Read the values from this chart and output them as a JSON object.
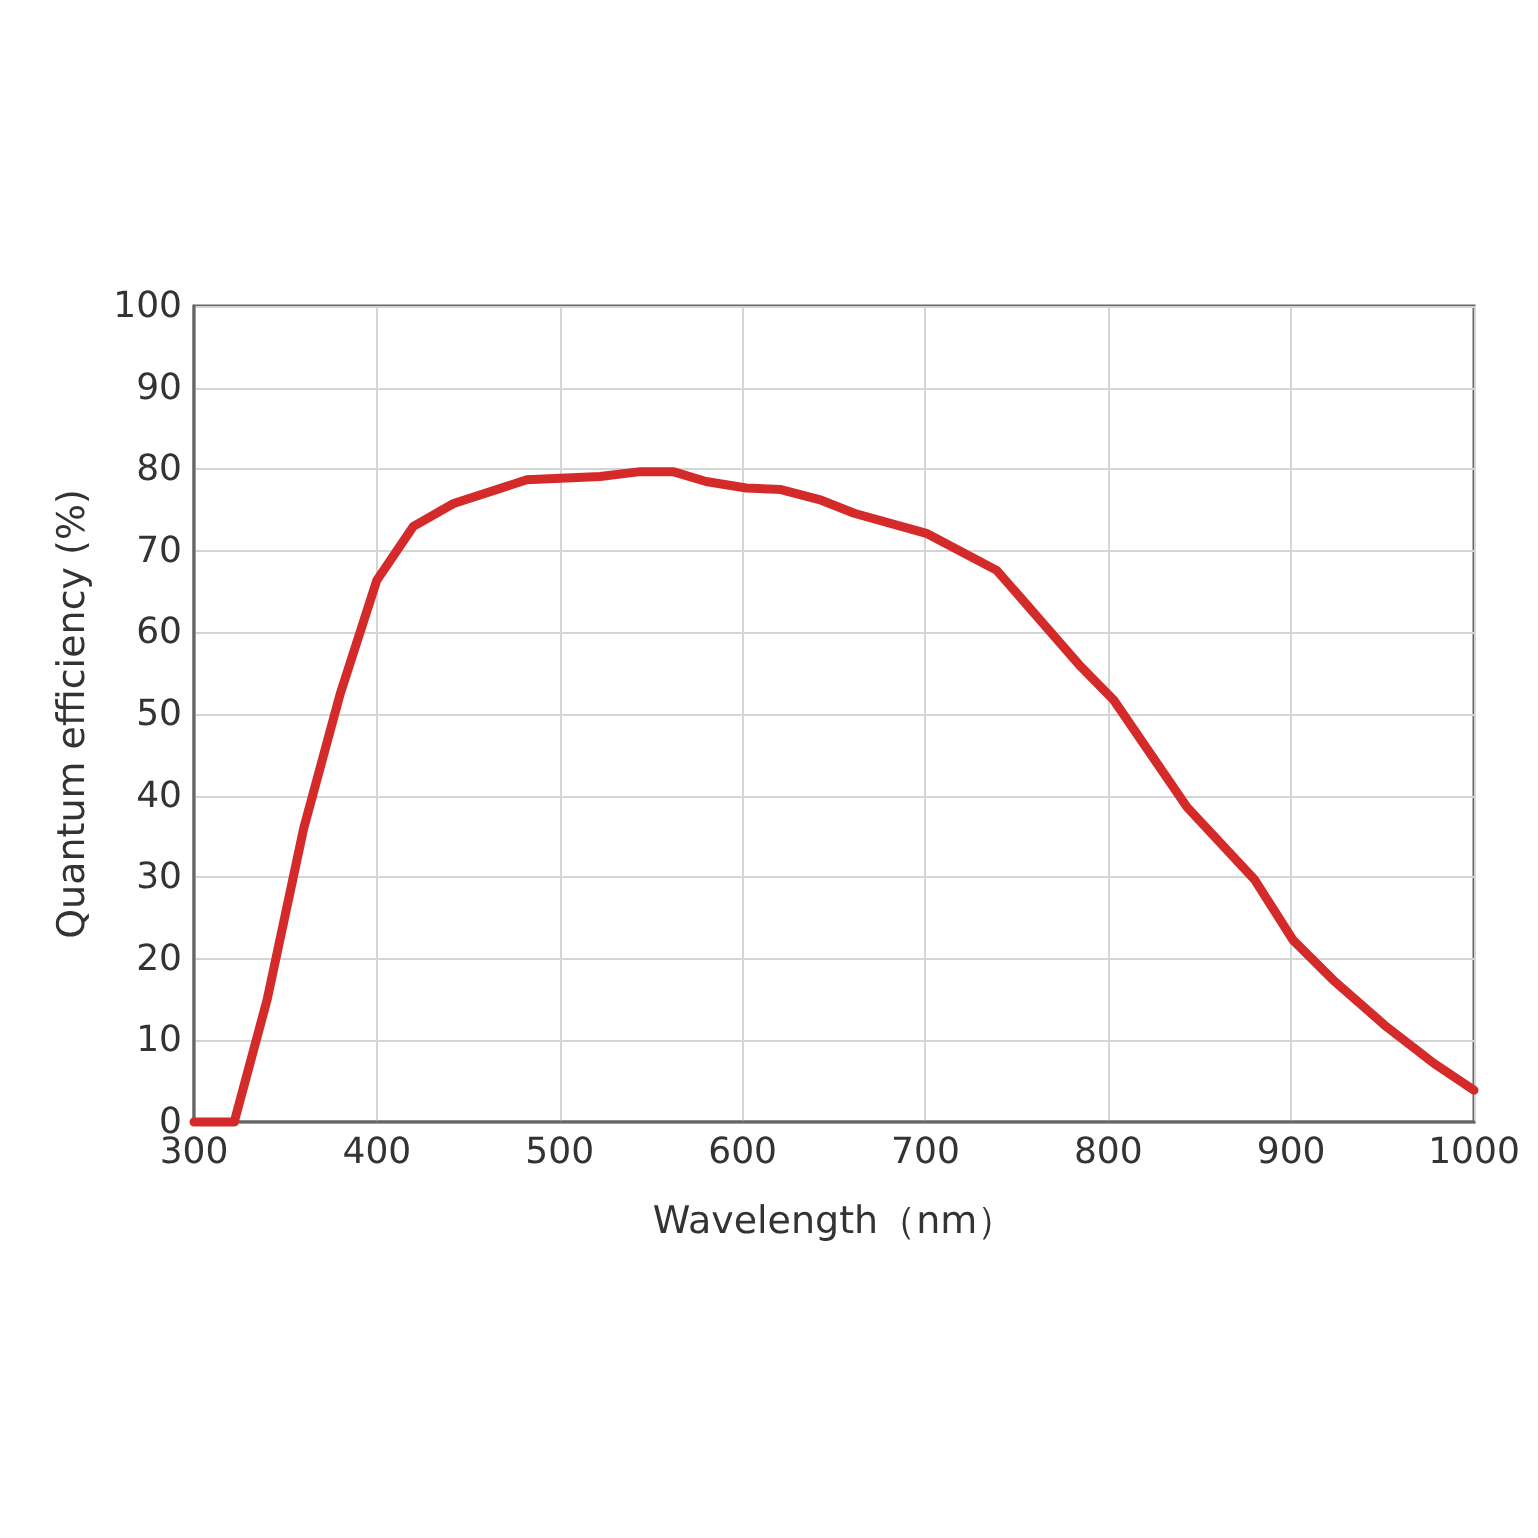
{
  "chart_data": {
    "type": "line",
    "xlabel": "Wavelength（nm）",
    "ylabel": "Quantum efficiency (%)",
    "xlim": [
      300,
      1000
    ],
    "xticks": [
      300,
      400,
      500,
      600,
      700,
      800,
      900,
      1000
    ],
    "ylim": [
      0,
      100
    ],
    "yticks": [
      0,
      10,
      20,
      30,
      40,
      50,
      60,
      70,
      80,
      90,
      100
    ],
    "grid": true,
    "marker": "none",
    "line_style": "solid",
    "series": [
      {
        "color": "#d42a2a",
        "x": [
          300,
          322,
          340,
          360,
          380,
          400,
          420,
          442,
          482,
          522,
          544,
          562,
          580,
          602,
          621,
          643,
          661,
          701,
          739,
          785,
          803,
          843,
          880,
          901,
          923,
          952,
          978,
          1000
        ],
        "values": [
          0,
          0,
          15,
          36,
          52.5,
          66.4,
          73,
          75.8,
          78.7,
          79.1,
          79.7,
          79.7,
          78.5,
          77.7,
          77.5,
          76.2,
          74.6,
          72.1,
          67.6,
          55.8,
          51.7,
          38.6,
          29.7,
          22.3,
          17.4,
          11.7,
          7.2,
          3.9
        ]
      }
    ]
  }
}
